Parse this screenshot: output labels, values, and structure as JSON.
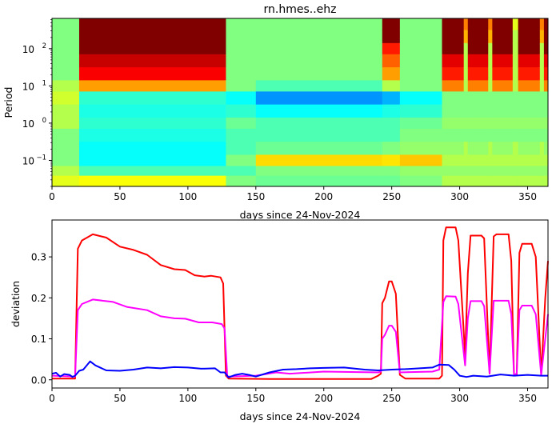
{
  "chart_data": [
    {
      "type": "heatmap",
      "title": "rn.hmes..ehz",
      "xlabel": "days since 24-Nov-2024",
      "ylabel": "Period",
      "xlim": [
        0,
        365
      ],
      "ylim": [
        0.02,
        650
      ],
      "yscale": "log",
      "colormap": "jet",
      "xticks": [
        0,
        50,
        100,
        150,
        200,
        250,
        300,
        350
      ],
      "yticks": [
        {
          "base": "10",
          "exp": "2",
          "value": 100
        },
        {
          "base": "10",
          "exp": "1",
          "value": 10
        },
        {
          "base": "10",
          "exp": "0",
          "value": 1
        },
        {
          "base": "10",
          "exp": "−1",
          "value": 0.1
        }
      ],
      "periods": [
        500,
        200,
        100,
        50,
        20,
        10,
        5,
        2,
        1,
        0.5,
        0.2,
        0.1,
        0.05,
        0.03
      ],
      "columns": [
        {
          "x0": 0,
          "x1": 20,
          "v": [
            0.5,
            0.5,
            0.5,
            0.5,
            0.5,
            0.55,
            0.58,
            0.55,
            0.55,
            0.5,
            0.5,
            0.5,
            0.55,
            0.6
          ]
        },
        {
          "x0": 20,
          "x1": 128,
          "v": [
            1,
            1,
            1,
            0.93,
            0.88,
            0.72,
            0.42,
            0.4,
            0.42,
            0.4,
            0.38,
            0.38,
            0.45,
            0.62
          ]
        },
        {
          "x0": 128,
          "x1": 150,
          "v": [
            0.5,
            0.5,
            0.5,
            0.5,
            0.5,
            0.5,
            0.38,
            0.42,
            0.48,
            0.45,
            0.45,
            0.5,
            0.45,
            0.5
          ]
        },
        {
          "x0": 150,
          "x1": 243,
          "v": [
            0.5,
            0.5,
            0.5,
            0.5,
            0.5,
            0.45,
            0.27,
            0.38,
            0.45,
            0.45,
            0.48,
            0.66,
            0.5,
            0.48
          ]
        },
        {
          "x0": 243,
          "x1": 256,
          "v": [
            1,
            1,
            0.85,
            0.78,
            0.72,
            0.55,
            0.3,
            0.4,
            0.45,
            0.45,
            0.5,
            0.65,
            0.5,
            0.48
          ]
        },
        {
          "x0": 256,
          "x1": 287,
          "v": [
            0.5,
            0.5,
            0.5,
            0.5,
            0.5,
            0.5,
            0.38,
            0.42,
            0.48,
            0.5,
            0.52,
            0.68,
            0.52,
            0.5
          ]
        },
        {
          "x0": 287,
          "x1": 303,
          "v": [
            1,
            1,
            1,
            0.9,
            0.85,
            0.75,
            0.5,
            0.5,
            0.52,
            0.5,
            0.52,
            0.55,
            0.52,
            0.55
          ]
        },
        {
          "x0": 303,
          "x1": 306,
          "v": [
            0.75,
            0.7,
            0.55,
            0.55,
            0.55,
            0.55,
            0.5,
            0.5,
            0.52,
            0.5,
            0.55,
            0.55,
            0.52,
            0.55
          ]
        },
        {
          "x0": 306,
          "x1": 321,
          "v": [
            1,
            1,
            1,
            0.9,
            0.85,
            0.75,
            0.5,
            0.5,
            0.52,
            0.5,
            0.52,
            0.55,
            0.52,
            0.55
          ]
        },
        {
          "x0": 321,
          "x1": 324,
          "v": [
            0.75,
            0.7,
            0.55,
            0.55,
            0.55,
            0.55,
            0.5,
            0.5,
            0.52,
            0.5,
            0.55,
            0.55,
            0.52,
            0.55
          ]
        },
        {
          "x0": 324,
          "x1": 339,
          "v": [
            1,
            1,
            1,
            0.9,
            0.85,
            0.75,
            0.5,
            0.5,
            0.52,
            0.5,
            0.52,
            0.55,
            0.52,
            0.55
          ]
        },
        {
          "x0": 339,
          "x1": 343,
          "v": [
            0.6,
            0.55,
            0.55,
            0.55,
            0.55,
            0.55,
            0.5,
            0.5,
            0.52,
            0.5,
            0.55,
            0.55,
            0.52,
            0.55
          ]
        },
        {
          "x0": 343,
          "x1": 359,
          "v": [
            1,
            1,
            1,
            0.9,
            0.85,
            0.75,
            0.5,
            0.5,
            0.52,
            0.5,
            0.52,
            0.55,
            0.52,
            0.55
          ]
        },
        {
          "x0": 359,
          "x1": 362,
          "v": [
            0.75,
            0.7,
            0.55,
            0.55,
            0.55,
            0.55,
            0.5,
            0.5,
            0.52,
            0.5,
            0.55,
            0.55,
            0.52,
            0.55
          ]
        },
        {
          "x0": 362,
          "x1": 365,
          "v": [
            1,
            1,
            1,
            0.9,
            0.85,
            0.75,
            0.5,
            0.5,
            0.52,
            0.5,
            0.52,
            0.55,
            0.52,
            0.55
          ]
        }
      ]
    },
    {
      "type": "line",
      "xlabel": "days since 24-Nov-2024",
      "ylabel": "deviation",
      "xlim": [
        0,
        365
      ],
      "ylim": [
        -0.02,
        0.39
      ],
      "xticks": [
        0,
        50,
        100,
        150,
        200,
        250,
        300,
        350
      ],
      "yticks": [
        "0.0",
        "0.1",
        "0.2",
        "0.3"
      ],
      "series": [
        {
          "color": "#ff0000",
          "points": [
            [
              0,
              0.003
            ],
            [
              17,
              0.003
            ],
            [
              19,
              0.32
            ],
            [
              22,
              0.34
            ],
            [
              30,
              0.355
            ],
            [
              40,
              0.347
            ],
            [
              50,
              0.325
            ],
            [
              60,
              0.317
            ],
            [
              70,
              0.305
            ],
            [
              80,
              0.28
            ],
            [
              90,
              0.27
            ],
            [
              98,
              0.268
            ],
            [
              105,
              0.255
            ],
            [
              112,
              0.252
            ],
            [
              117,
              0.254
            ],
            [
              124,
              0.25
            ],
            [
              126,
              0.235
            ],
            [
              128,
              0.01
            ],
            [
              130,
              0.003
            ],
            [
              160,
              0.002
            ],
            [
              200,
              0.002
            ],
            [
              235,
              0.002
            ],
            [
              240,
              0.01
            ],
            [
              242,
              0.015
            ],
            [
              243,
              0.187
            ],
            [
              245,
              0.2
            ],
            [
              248,
              0.24
            ],
            [
              250,
              0.24
            ],
            [
              253,
              0.21
            ],
            [
              256,
              0.012
            ],
            [
              260,
              0.003
            ],
            [
              285,
              0.003
            ],
            [
              287,
              0.01
            ],
            [
              288,
              0.34
            ],
            [
              290,
              0.372
            ],
            [
              297,
              0.372
            ],
            [
              299,
              0.34
            ],
            [
              304,
              0.06
            ],
            [
              306,
              0.26
            ],
            [
              308,
              0.352
            ],
            [
              316,
              0.352
            ],
            [
              318,
              0.345
            ],
            [
              322,
              0.015
            ],
            [
              325,
              0.35
            ],
            [
              327,
              0.355
            ],
            [
              336,
              0.355
            ],
            [
              338,
              0.29
            ],
            [
              340,
              0.012
            ],
            [
              342,
              0.012
            ],
            [
              344,
              0.31
            ],
            [
              346,
              0.332
            ],
            [
              353,
              0.332
            ],
            [
              356,
              0.3
            ],
            [
              360,
              0.012
            ],
            [
              363,
              0.2
            ],
            [
              365,
              0.29
            ]
          ]
        },
        {
          "color": "#ff00ff",
          "points": [
            [
              0,
              0.01
            ],
            [
              17,
              0.008
            ],
            [
              19,
              0.17
            ],
            [
              22,
              0.185
            ],
            [
              30,
              0.196
            ],
            [
              45,
              0.19
            ],
            [
              55,
              0.178
            ],
            [
              70,
              0.17
            ],
            [
              80,
              0.155
            ],
            [
              90,
              0.15
            ],
            [
              98,
              0.149
            ],
            [
              108,
              0.14
            ],
            [
              118,
              0.14
            ],
            [
              125,
              0.136
            ],
            [
              127,
              0.125
            ],
            [
              129,
              0.008
            ],
            [
              150,
              0.01
            ],
            [
              165,
              0.018
            ],
            [
              175,
              0.015
            ],
            [
              200,
              0.02
            ],
            [
              240,
              0.018
            ],
            [
              242,
              0.02
            ],
            [
              243,
              0.1
            ],
            [
              245,
              0.11
            ],
            [
              248,
              0.132
            ],
            [
              250,
              0.132
            ],
            [
              253,
              0.117
            ],
            [
              256,
              0.018
            ],
            [
              280,
              0.02
            ],
            [
              285,
              0.025
            ],
            [
              288,
              0.19
            ],
            [
              290,
              0.204
            ],
            [
              297,
              0.203
            ],
            [
              299,
              0.185
            ],
            [
              304,
              0.035
            ],
            [
              306,
              0.15
            ],
            [
              308,
              0.192
            ],
            [
              316,
              0.192
            ],
            [
              318,
              0.18
            ],
            [
              322,
              0.015
            ],
            [
              325,
              0.193
            ],
            [
              336,
              0.193
            ],
            [
              338,
              0.16
            ],
            [
              340,
              0.012
            ],
            [
              342,
              0.015
            ],
            [
              344,
              0.17
            ],
            [
              346,
              0.181
            ],
            [
              353,
              0.181
            ],
            [
              356,
              0.16
            ],
            [
              360,
              0.012
            ],
            [
              365,
              0.16
            ]
          ]
        },
        {
          "color": "#0000ff",
          "points": [
            [
              0,
              0.015
            ],
            [
              3,
              0.017
            ],
            [
              6,
              0.008
            ],
            [
              9,
              0.014
            ],
            [
              13,
              0.012
            ],
            [
              15,
              0.007
            ],
            [
              17,
              0.01
            ],
            [
              20,
              0.022
            ],
            [
              23,
              0.025
            ],
            [
              28,
              0.045
            ],
            [
              32,
              0.035
            ],
            [
              40,
              0.023
            ],
            [
              50,
              0.022
            ],
            [
              60,
              0.025
            ],
            [
              70,
              0.03
            ],
            [
              80,
              0.028
            ],
            [
              90,
              0.031
            ],
            [
              100,
              0.03
            ],
            [
              110,
              0.027
            ],
            [
              120,
              0.028
            ],
            [
              124,
              0.018
            ],
            [
              127,
              0.018
            ],
            [
              130,
              0.006
            ],
            [
              135,
              0.012
            ],
            [
              140,
              0.015
            ],
            [
              145,
              0.012
            ],
            [
              150,
              0.008
            ],
            [
              160,
              0.018
            ],
            [
              170,
              0.025
            ],
            [
              180,
              0.026
            ],
            [
              190,
              0.028
            ],
            [
              200,
              0.029
            ],
            [
              215,
              0.03
            ],
            [
              230,
              0.025
            ],
            [
              240,
              0.023
            ],
            [
              250,
              0.025
            ],
            [
              260,
              0.026
            ],
            [
              280,
              0.03
            ],
            [
              285,
              0.037
            ],
            [
              292,
              0.036
            ],
            [
              296,
              0.025
            ],
            [
              300,
              0.01
            ],
            [
              305,
              0.007
            ],
            [
              310,
              0.01
            ],
            [
              320,
              0.008
            ],
            [
              330,
              0.013
            ],
            [
              340,
              0.01
            ],
            [
              350,
              0.012
            ],
            [
              360,
              0.01
            ],
            [
              365,
              0.01
            ]
          ]
        }
      ]
    }
  ]
}
